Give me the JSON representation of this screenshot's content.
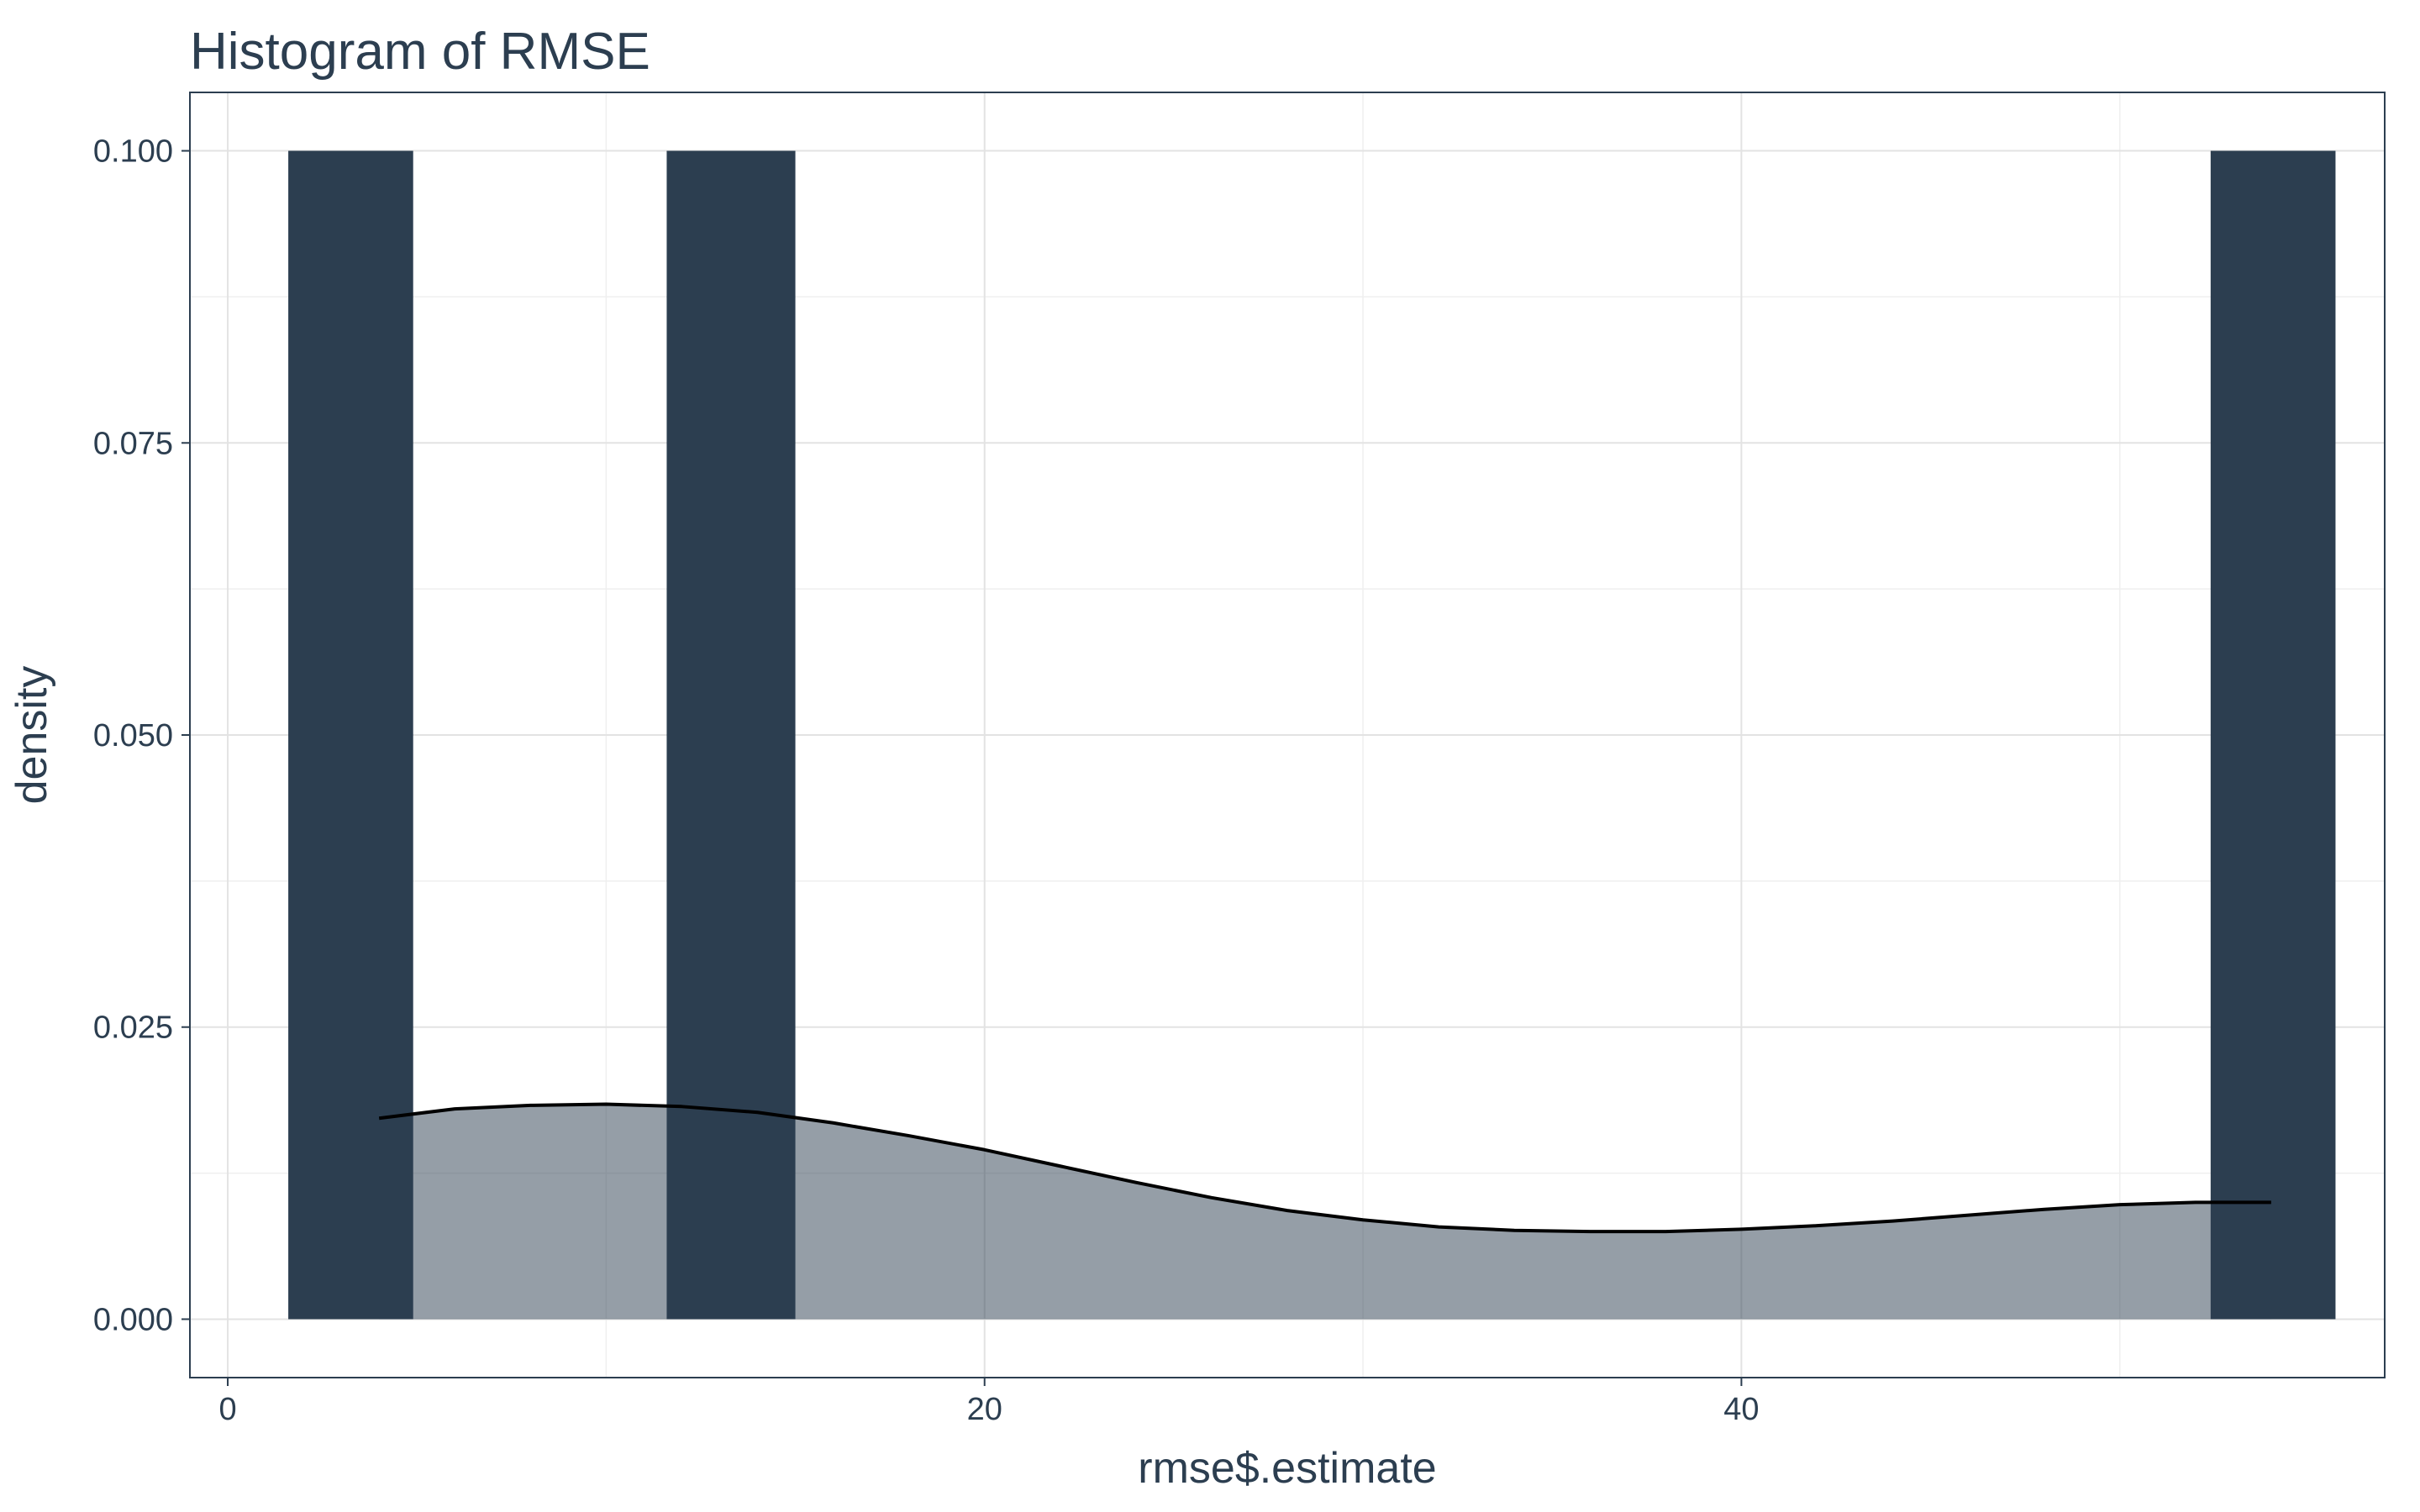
{
  "chart_data": {
    "type": "bar",
    "title": "Histogram of RMSE",
    "xlabel": "rmse$.estimate",
    "ylabel": "density",
    "xlim": [
      -1.0,
      57.0
    ],
    "ylim": [
      -0.005,
      0.105
    ],
    "x_ticks": [
      0,
      20,
      40
    ],
    "x_tick_labels": [
      "0",
      "20",
      "40"
    ],
    "y_ticks": [
      0.0,
      0.025,
      0.05,
      0.075,
      0.1
    ],
    "y_tick_labels": [
      "0.000",
      "0.025",
      "0.050",
      "0.075",
      "0.100"
    ],
    "y_minor_ticks": [
      0.0125,
      0.0375,
      0.0625,
      0.0875
    ],
    "x_minor_ticks": [
      10,
      30,
      50
    ],
    "grid": true,
    "bins": [
      {
        "x_start": 1.6,
        "x_end": 4.9,
        "density": 0.1
      },
      {
        "x_start": 11.6,
        "x_end": 15.0,
        "density": 0.1
      },
      {
        "x_start": 52.4,
        "x_end": 55.7,
        "density": 0.1
      }
    ],
    "density_curve": {
      "x": [
        4.0,
        6.0,
        8.0,
        10.0,
        12.0,
        14.0,
        16.0,
        18.0,
        20.0,
        22.0,
        24.0,
        26.0,
        28.0,
        30.0,
        32.0,
        34.0,
        36.0,
        38.0,
        40.0,
        42.0,
        44.0,
        46.0,
        48.0,
        50.0,
        52.0,
        54.0
      ],
      "y": [
        0.0172,
        0.018,
        0.0183,
        0.0184,
        0.0182,
        0.0177,
        0.0168,
        0.0157,
        0.0145,
        0.0131,
        0.0117,
        0.0104,
        0.0093,
        0.0085,
        0.0079,
        0.0076,
        0.0075,
        0.0075,
        0.0077,
        0.008,
        0.0084,
        0.0089,
        0.0094,
        0.0098,
        0.01,
        0.01
      ]
    },
    "colors": {
      "bar_fill": "#2c3e50",
      "density_fill": "#2c3e50",
      "density_fill_opacity": 0.5,
      "density_line": "#000000",
      "text": "#2c3e50",
      "panel_border": "#2c3e50",
      "grid": "#e3e3e3"
    }
  }
}
